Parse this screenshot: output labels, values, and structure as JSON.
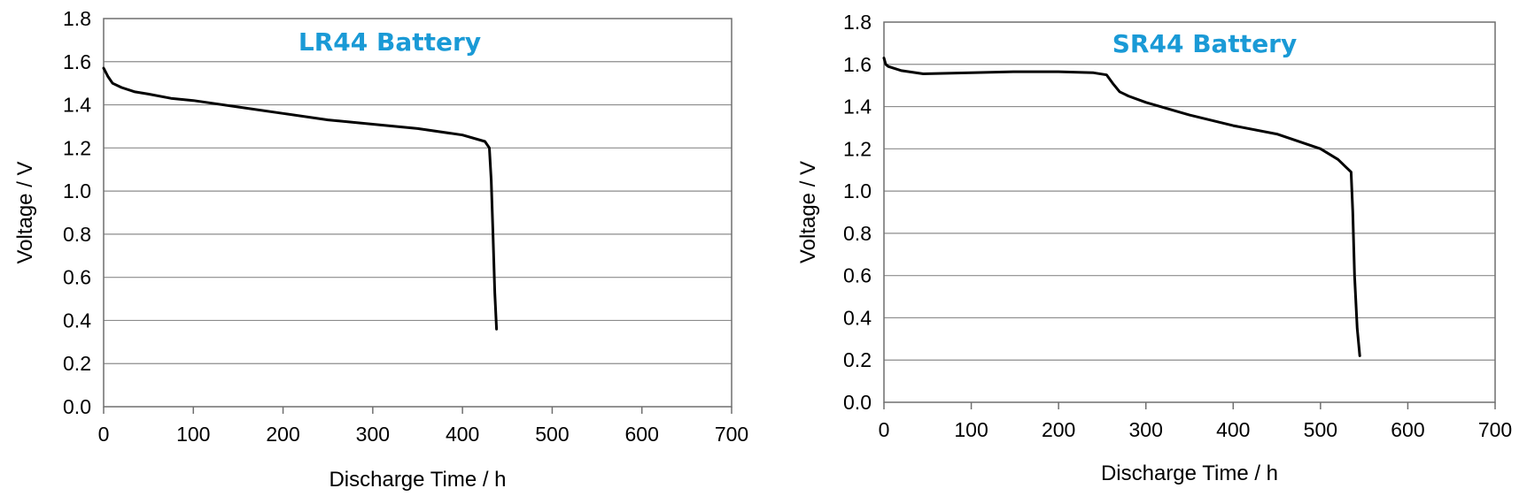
{
  "chart_data": [
    {
      "type": "line",
      "title": "LR44 Battery",
      "title_color": "#1a9ad6",
      "xlabel": "Discharge Time  / h",
      "ylabel": "Voltage / V",
      "xlim": [
        0,
        700
      ],
      "ylim": [
        0.0,
        1.8
      ],
      "xticks": [
        "0",
        "100",
        "200",
        "300",
        "400",
        "500",
        "600",
        "700"
      ],
      "yticks": [
        "0.0",
        "0.2",
        "0.4",
        "0.6",
        "0.8",
        "1.0",
        "1.2",
        "1.4",
        "1.6",
        "1.8"
      ],
      "grid": "horizontal",
      "series": [
        {
          "color": "#000000",
          "x": [
            0,
            5,
            10,
            20,
            35,
            50,
            75,
            100,
            150,
            200,
            250,
            300,
            350,
            400,
            425,
            430,
            432,
            434,
            436,
            438
          ],
          "y": [
            1.57,
            1.53,
            1.5,
            1.48,
            1.46,
            1.45,
            1.43,
            1.42,
            1.39,
            1.36,
            1.33,
            1.31,
            1.29,
            1.26,
            1.23,
            1.2,
            1.05,
            0.8,
            0.53,
            0.36
          ]
        }
      ]
    },
    {
      "type": "line",
      "title": "SR44 Battery",
      "title_color": "#1a9ad6",
      "xlabel": "Discharge Time  / h",
      "ylabel": "Voltage / V",
      "xlim": [
        0,
        700
      ],
      "ylim": [
        0.0,
        1.8
      ],
      "xticks": [
        "0",
        "100",
        "200",
        "300",
        "400",
        "500",
        "600",
        "700"
      ],
      "yticks": [
        "0.0",
        "0.2",
        "0.4",
        "0.6",
        "0.8",
        "1.0",
        "1.2",
        "1.4",
        "1.6",
        "1.8"
      ],
      "grid": "horizontal",
      "series": [
        {
          "color": "#000000",
          "x": [
            0,
            2,
            5,
            20,
            45,
            100,
            150,
            200,
            240,
            255,
            262,
            270,
            280,
            300,
            350,
            400,
            450,
            500,
            520,
            530,
            535,
            537,
            539,
            542,
            545
          ],
          "y": [
            1.63,
            1.6,
            1.59,
            1.57,
            1.555,
            1.56,
            1.565,
            1.565,
            1.56,
            1.55,
            1.51,
            1.47,
            1.45,
            1.42,
            1.36,
            1.31,
            1.27,
            1.2,
            1.15,
            1.11,
            1.09,
            0.9,
            0.6,
            0.35,
            0.22
          ]
        }
      ]
    }
  ]
}
